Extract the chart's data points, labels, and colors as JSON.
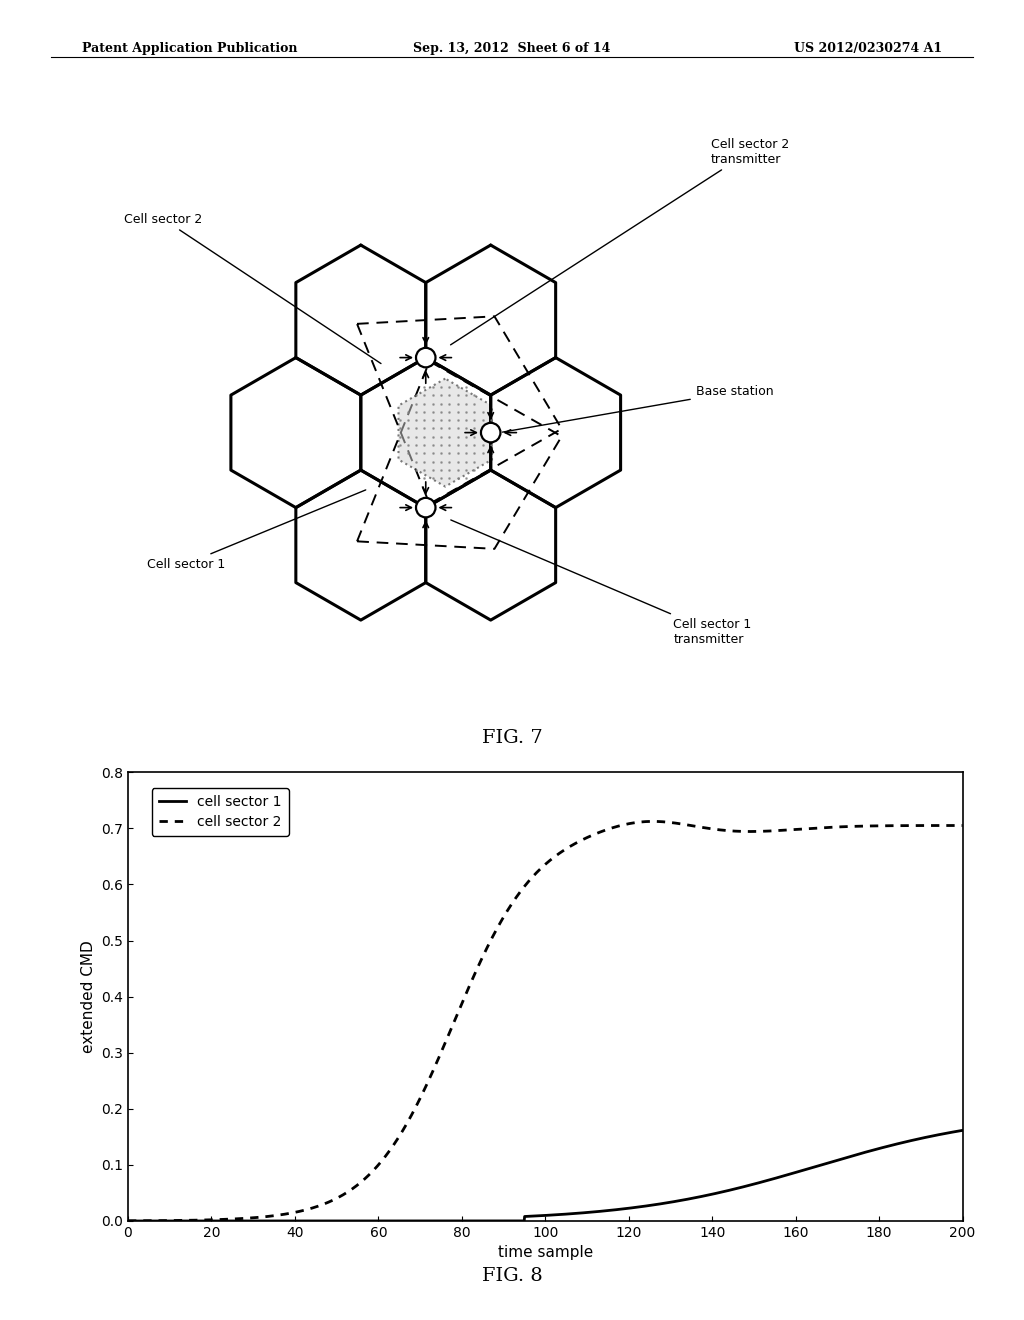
{
  "page_title_left": "Patent Application Publication",
  "page_title_center": "Sep. 13, 2012  Sheet 6 of 14",
  "page_title_right": "US 2012/0230274 A1",
  "fig7_caption": "FIG. 7",
  "fig8_caption": "FIG. 8",
  "fig8_xlabel": "time sample",
  "fig8_ylabel": "extended CMD",
  "fig8_xlim": [
    0,
    200
  ],
  "fig8_ylim": [
    0,
    0.8
  ],
  "fig8_xticks": [
    0,
    20,
    40,
    60,
    80,
    100,
    120,
    140,
    160,
    180,
    200
  ],
  "fig8_yticks": [
    0,
    0.1,
    0.2,
    0.3,
    0.4,
    0.5,
    0.6,
    0.7,
    0.8
  ],
  "legend_labels": [
    "cell sector 1",
    "cell sector 2"
  ],
  "bg_color": "#ffffff",
  "line_color": "#000000",
  "hex_r": 1.0,
  "fig7_xlim": [
    -4.2,
    6.5
  ],
  "fig7_ylim": [
    -4.0,
    4.8
  ],
  "label_cell_sector_2": "Cell sector 2",
  "label_cell_sector_1": "Cell sector 1",
  "label_base_station": "Base station",
  "label_cs2_tx": "Cell sector 2\ntransmitter",
  "label_cs1_tx": "Cell sector 1\ntransmitter"
}
